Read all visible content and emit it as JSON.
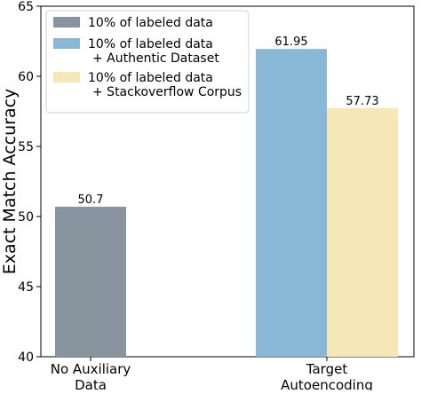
{
  "chart_data": {
    "type": "bar",
    "title": "",
    "xlabel": "",
    "ylabel": "Exact Match Accuracy",
    "ylim": [
      40,
      65
    ],
    "yticks": [
      40,
      45,
      50,
      55,
      60,
      65
    ],
    "grid": false,
    "legend_position": "top-left",
    "categories": [
      [
        "No Auxiliary",
        "Data"
      ],
      [
        "Target",
        "Autoencoding"
      ]
    ],
    "series": [
      {
        "name": [
          "10% of labeled data"
        ],
        "color": "#88959f",
        "values": [
          50.7,
          null
        ],
        "labels": [
          "50.7",
          null
        ]
      },
      {
        "name": [
          "10% of labeled data",
          "+ Authentic Dataset"
        ],
        "color": "#89b8d6",
        "values": [
          null,
          61.95
        ],
        "labels": [
          null,
          "61.95"
        ]
      },
      {
        "name": [
          "10% of labeled data",
          "+ Stackoverflow Corpus"
        ],
        "color": "#f6e8b6",
        "values": [
          null,
          57.73
        ],
        "labels": [
          null,
          "57.73"
        ]
      }
    ]
  }
}
